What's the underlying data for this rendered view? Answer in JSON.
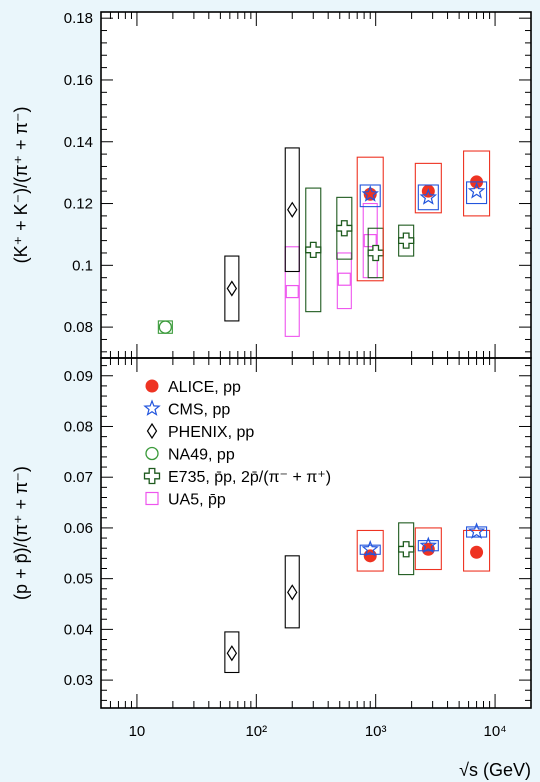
{
  "figure": {
    "background_color": "#eaf6fb",
    "x_axis_title": "√s (GeV)",
    "top_y_title": "(K⁺ + K⁻)/(π⁺ + π⁻)",
    "bottom_y_title": "(p + p̄)/(π⁺ + π⁻)"
  },
  "chart_data": [
    {
      "type": "scatter",
      "panel": "top",
      "ylabel": "(K⁺ + K⁻)/(π⁺ + π⁻)",
      "ylim": [
        0.07,
        0.182
      ],
      "x_scale": "log",
      "xlim": [
        5,
        20000
      ],
      "yticks": [
        "0.08",
        "0.1",
        "0.12",
        "0.14",
        "0.16",
        "0.18"
      ],
      "series": [
        {
          "name": "ALICE, pp",
          "color": "#ee3322",
          "marker": "circle",
          "points": [
            {
              "x": 900,
              "y": 0.123,
              "ylo": 0.095,
              "yhi": 0.135
            },
            {
              "x": 2760,
              "y": 0.124,
              "ylo": 0.117,
              "yhi": 0.133
            },
            {
              "x": 7000,
              "y": 0.127,
              "ylo": 0.116,
              "yhi": 0.137
            }
          ]
        },
        {
          "name": "CMS, pp",
          "color": "#2255dd",
          "marker": "star",
          "points": [
            {
              "x": 900,
              "y": 0.123,
              "ylo": 0.119,
              "yhi": 0.126
            },
            {
              "x": 2760,
              "y": 0.122,
              "ylo": 0.118,
              "yhi": 0.126
            },
            {
              "x": 7000,
              "y": 0.124,
              "ylo": 0.12,
              "yhi": 0.127
            }
          ]
        },
        {
          "name": "PHENIX, pp",
          "color": "#000000",
          "marker": "diamond",
          "points": [
            {
              "x": 62.4,
              "y": 0.0925,
              "ylo": 0.082,
              "yhi": 0.103
            },
            {
              "x": 200,
              "y": 0.118,
              "ylo": 0.098,
              "yhi": 0.138
            }
          ]
        },
        {
          "name": "NA49, pp",
          "color": "#3a9a3a",
          "marker": "circle-open",
          "points": [
            {
              "x": 17.3,
              "y": 0.08,
              "ylo": 0.078,
              "yhi": 0.082
            }
          ]
        },
        {
          "name": "E735, p̄p, 2p̄/(π⁻ + π⁺)",
          "color": "#1e5a1e",
          "marker": "cross-open",
          "points": [
            {
              "x": 300,
              "y": 0.105,
              "ylo": 0.085,
              "yhi": 0.125
            },
            {
              "x": 546,
              "y": 0.112,
              "ylo": 0.102,
              "yhi": 0.122
            },
            {
              "x": 1000,
              "y": 0.104,
              "ylo": 0.096,
              "yhi": 0.112
            },
            {
              "x": 1800,
              "y": 0.108,
              "ylo": 0.103,
              "yhi": 0.113
            }
          ]
        },
        {
          "name": "UA5, p̄p",
          "color": "#ee55ee",
          "marker": "square-open",
          "points": [
            {
              "x": 200,
              "y": 0.0915,
              "ylo": 0.077,
              "yhi": 0.106
            },
            {
              "x": 546,
              "y": 0.0955,
              "ylo": 0.086,
              "yhi": 0.104
            },
            {
              "x": 900,
              "y": 0.108,
              "ylo": 0.096,
              "yhi": 0.12
            }
          ]
        }
      ]
    },
    {
      "type": "scatter",
      "panel": "bottom",
      "ylabel": "(p + p̄)/(π⁺ + π⁻)",
      "ylim": [
        0.0245,
        0.0935
      ],
      "x_scale": "log",
      "xlim": [
        5,
        20000
      ],
      "xticks": [
        {
          "x": 10,
          "label": "10"
        },
        {
          "x": 100,
          "label": "10²"
        },
        {
          "x": 1000,
          "label": "10³"
        },
        {
          "x": 10000,
          "label": "10⁴"
        }
      ],
      "yticks": [
        "0.03",
        "0.04",
        "0.05",
        "0.06",
        "0.07",
        "0.08",
        "0.09"
      ],
      "series": [
        {
          "name": "ALICE, pp",
          "color": "#ee3322",
          "marker": "circle",
          "points": [
            {
              "x": 900,
              "y": 0.0545,
              "ylo": 0.0515,
              "yhi": 0.0595
            },
            {
              "x": 2760,
              "y": 0.0558,
              "ylo": 0.0518,
              "yhi": 0.06
            },
            {
              "x": 7000,
              "y": 0.0552,
              "ylo": 0.0515,
              "yhi": 0.0595
            }
          ]
        },
        {
          "name": "CMS, pp",
          "color": "#2255dd",
          "marker": "star",
          "points": [
            {
              "x": 900,
              "y": 0.0558,
              "ylo": 0.0548,
              "yhi": 0.0566
            },
            {
              "x": 2760,
              "y": 0.0565,
              "ylo": 0.0555,
              "yhi": 0.0575
            },
            {
              "x": 7000,
              "y": 0.0593,
              "ylo": 0.0582,
              "yhi": 0.0602
            }
          ]
        },
        {
          "name": "PHENIX, pp",
          "color": "#000000",
          "marker": "diamond",
          "points": [
            {
              "x": 62.4,
              "y": 0.0353,
              "ylo": 0.0315,
              "yhi": 0.0395
            },
            {
              "x": 200,
              "y": 0.0473,
              "ylo": 0.0403,
              "yhi": 0.0545
            }
          ]
        },
        {
          "name": "E735, p̄p, 2p̄/(π⁻ + π⁺)",
          "color": "#1e5a1e",
          "marker": "cross-open",
          "points": [
            {
              "x": 1800,
              "y": 0.0558,
              "ylo": 0.0508,
              "yhi": 0.061
            }
          ]
        }
      ]
    }
  ]
}
